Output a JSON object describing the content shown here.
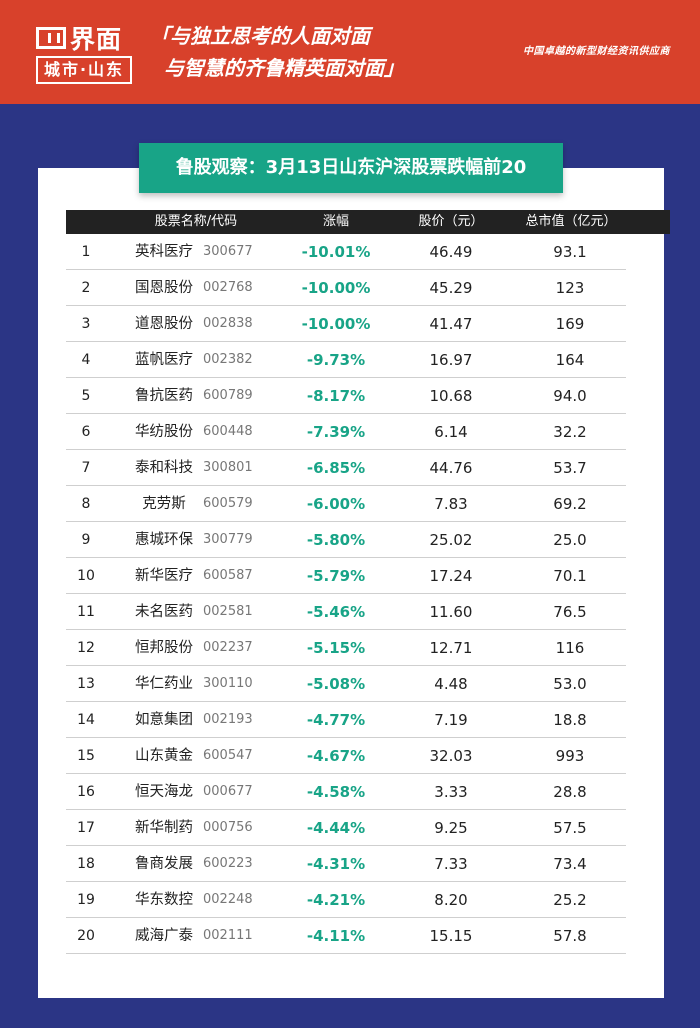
{
  "header": {
    "logo_top": "界面",
    "logo_bottom": "城市·山东",
    "slogan_line1": "「与独立思考的人面对面",
    "slogan_line2": "与智慧的齐鲁精英面对面」",
    "tagline": "中国卓越的新型财经资讯供应商"
  },
  "title": "鲁股观察：3月13日山东沪深股票跌幅前20",
  "columns": {
    "name_code": "股票名称/代码",
    "change": "涨幅",
    "price": "股价（元）",
    "market_cap": "总市值（亿元）"
  },
  "rows": [
    {
      "rank": "1",
      "name": "英科医疗",
      "code": "300677",
      "change": "-10.01%",
      "price": "46.49",
      "cap": "93.1"
    },
    {
      "rank": "2",
      "name": "国恩股份",
      "code": "002768",
      "change": "-10.00%",
      "price": "45.29",
      "cap": "123"
    },
    {
      "rank": "3",
      "name": "道恩股份",
      "code": "002838",
      "change": "-10.00%",
      "price": "41.47",
      "cap": "169"
    },
    {
      "rank": "4",
      "name": "蓝帆医疗",
      "code": "002382",
      "change": "-9.73%",
      "price": "16.97",
      "cap": "164"
    },
    {
      "rank": "5",
      "name": "鲁抗医药",
      "code": "600789",
      "change": "-8.17%",
      "price": "10.68",
      "cap": "94.0"
    },
    {
      "rank": "6",
      "name": "华纺股份",
      "code": "600448",
      "change": "-7.39%",
      "price": "6.14",
      "cap": "32.2"
    },
    {
      "rank": "7",
      "name": "泰和科技",
      "code": "300801",
      "change": "-6.85%",
      "price": "44.76",
      "cap": "53.7"
    },
    {
      "rank": "8",
      "name": "克劳斯",
      "code": "600579",
      "change": "-6.00%",
      "price": "7.83",
      "cap": "69.2"
    },
    {
      "rank": "9",
      "name": "惠城环保",
      "code": "300779",
      "change": "-5.80%",
      "price": "25.02",
      "cap": "25.0"
    },
    {
      "rank": "10",
      "name": "新华医疗",
      "code": "600587",
      "change": "-5.79%",
      "price": "17.24",
      "cap": "70.1"
    },
    {
      "rank": "11",
      "name": "未名医药",
      "code": "002581",
      "change": "-5.46%",
      "price": "11.60",
      "cap": "76.5"
    },
    {
      "rank": "12",
      "name": "恒邦股份",
      "code": "002237",
      "change": "-5.15%",
      "price": "12.71",
      "cap": "116"
    },
    {
      "rank": "13",
      "name": "华仁药业",
      "code": "300110",
      "change": "-5.08%",
      "price": "4.48",
      "cap": "53.0"
    },
    {
      "rank": "14",
      "name": "如意集团",
      "code": "002193",
      "change": "-4.77%",
      "price": "7.19",
      "cap": "18.8"
    },
    {
      "rank": "15",
      "name": "山东黄金",
      "code": "600547",
      "change": "-4.67%",
      "price": "32.03",
      "cap": "993"
    },
    {
      "rank": "16",
      "name": "恒天海龙",
      "code": "000677",
      "change": "-4.58%",
      "price": "3.33",
      "cap": "28.8"
    },
    {
      "rank": "17",
      "name": "新华制药",
      "code": "000756",
      "change": "-4.44%",
      "price": "9.25",
      "cap": "57.5"
    },
    {
      "rank": "18",
      "name": "鲁商发展",
      "code": "600223",
      "change": "-4.31%",
      "price": "7.33",
      "cap": "73.4"
    },
    {
      "rank": "19",
      "name": "华东数控",
      "code": "002248",
      "change": "-4.21%",
      "price": "8.20",
      "cap": "25.2"
    },
    {
      "rank": "20",
      "name": "威海广泰",
      "code": "002111",
      "change": "-4.11%",
      "price": "15.15",
      "cap": "57.8"
    }
  ]
}
